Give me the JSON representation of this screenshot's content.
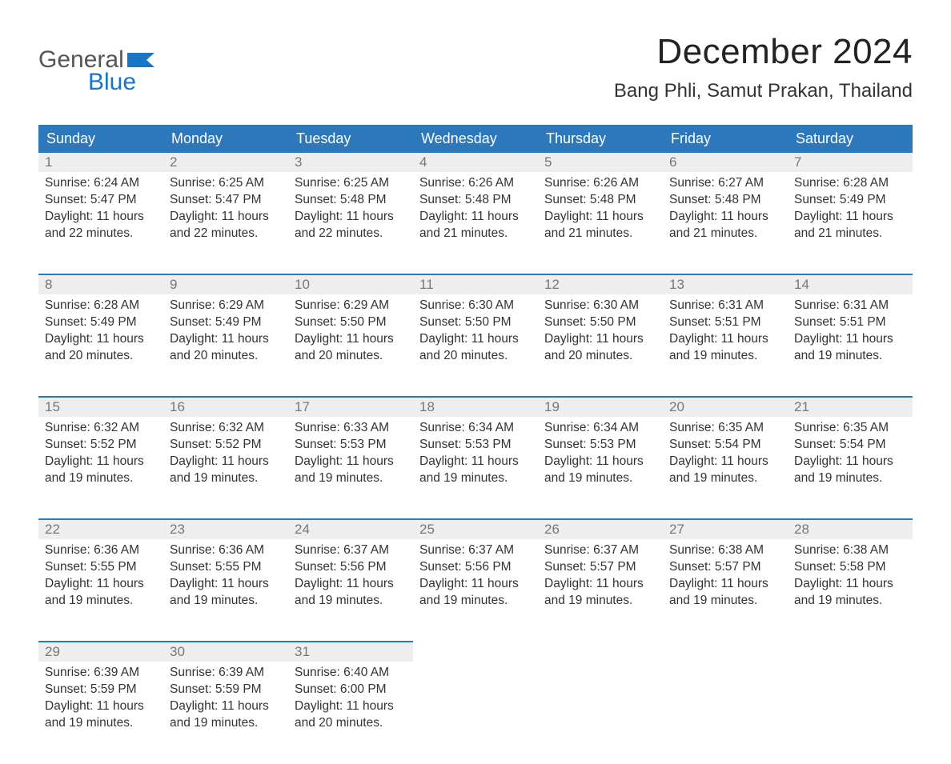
{
  "logo": {
    "word1": "General",
    "word2": "Blue",
    "word1_color": "#555555",
    "word2_color": "#1976c5",
    "flag_color": "#1976c5"
  },
  "title": "December 2024",
  "location": "Bang Phli, Samut Prakan, Thailand",
  "colors": {
    "header_bg": "#2d77bb",
    "header_text": "#ffffff",
    "daynum_bg": "#eeeeee",
    "daynum_text": "#777777",
    "row_border": "#2d77bb",
    "body_text": "#333333",
    "background": "#ffffff"
  },
  "fonts": {
    "title_size": 44,
    "location_size": 24,
    "header_size": 18,
    "daynum_size": 17,
    "cell_size": 15.5
  },
  "daysOfWeek": [
    "Sunday",
    "Monday",
    "Tuesday",
    "Wednesday",
    "Thursday",
    "Friday",
    "Saturday"
  ],
  "weeks": [
    [
      {
        "n": "1",
        "sunrise": "6:24 AM",
        "sunset": "5:47 PM",
        "dl1": "Daylight: 11 hours",
        "dl2": "and 22 minutes."
      },
      {
        "n": "2",
        "sunrise": "6:25 AM",
        "sunset": "5:47 PM",
        "dl1": "Daylight: 11 hours",
        "dl2": "and 22 minutes."
      },
      {
        "n": "3",
        "sunrise": "6:25 AM",
        "sunset": "5:48 PM",
        "dl1": "Daylight: 11 hours",
        "dl2": "and 22 minutes."
      },
      {
        "n": "4",
        "sunrise": "6:26 AM",
        "sunset": "5:48 PM",
        "dl1": "Daylight: 11 hours",
        "dl2": "and 21 minutes."
      },
      {
        "n": "5",
        "sunrise": "6:26 AM",
        "sunset": "5:48 PM",
        "dl1": "Daylight: 11 hours",
        "dl2": "and 21 minutes."
      },
      {
        "n": "6",
        "sunrise": "6:27 AM",
        "sunset": "5:48 PM",
        "dl1": "Daylight: 11 hours",
        "dl2": "and 21 minutes."
      },
      {
        "n": "7",
        "sunrise": "6:28 AM",
        "sunset": "5:49 PM",
        "dl1": "Daylight: 11 hours",
        "dl2": "and 21 minutes."
      }
    ],
    [
      {
        "n": "8",
        "sunrise": "6:28 AM",
        "sunset": "5:49 PM",
        "dl1": "Daylight: 11 hours",
        "dl2": "and 20 minutes."
      },
      {
        "n": "9",
        "sunrise": "6:29 AM",
        "sunset": "5:49 PM",
        "dl1": "Daylight: 11 hours",
        "dl2": "and 20 minutes."
      },
      {
        "n": "10",
        "sunrise": "6:29 AM",
        "sunset": "5:50 PM",
        "dl1": "Daylight: 11 hours",
        "dl2": "and 20 minutes."
      },
      {
        "n": "11",
        "sunrise": "6:30 AM",
        "sunset": "5:50 PM",
        "dl1": "Daylight: 11 hours",
        "dl2": "and 20 minutes."
      },
      {
        "n": "12",
        "sunrise": "6:30 AM",
        "sunset": "5:50 PM",
        "dl1": "Daylight: 11 hours",
        "dl2": "and 20 minutes."
      },
      {
        "n": "13",
        "sunrise": "6:31 AM",
        "sunset": "5:51 PM",
        "dl1": "Daylight: 11 hours",
        "dl2": "and 19 minutes."
      },
      {
        "n": "14",
        "sunrise": "6:31 AM",
        "sunset": "5:51 PM",
        "dl1": "Daylight: 11 hours",
        "dl2": "and 19 minutes."
      }
    ],
    [
      {
        "n": "15",
        "sunrise": "6:32 AM",
        "sunset": "5:52 PM",
        "dl1": "Daylight: 11 hours",
        "dl2": "and 19 minutes."
      },
      {
        "n": "16",
        "sunrise": "6:32 AM",
        "sunset": "5:52 PM",
        "dl1": "Daylight: 11 hours",
        "dl2": "and 19 minutes."
      },
      {
        "n": "17",
        "sunrise": "6:33 AM",
        "sunset": "5:53 PM",
        "dl1": "Daylight: 11 hours",
        "dl2": "and 19 minutes."
      },
      {
        "n": "18",
        "sunrise": "6:34 AM",
        "sunset": "5:53 PM",
        "dl1": "Daylight: 11 hours",
        "dl2": "and 19 minutes."
      },
      {
        "n": "19",
        "sunrise": "6:34 AM",
        "sunset": "5:53 PM",
        "dl1": "Daylight: 11 hours",
        "dl2": "and 19 minutes."
      },
      {
        "n": "20",
        "sunrise": "6:35 AM",
        "sunset": "5:54 PM",
        "dl1": "Daylight: 11 hours",
        "dl2": "and 19 minutes."
      },
      {
        "n": "21",
        "sunrise": "6:35 AM",
        "sunset": "5:54 PM",
        "dl1": "Daylight: 11 hours",
        "dl2": "and 19 minutes."
      }
    ],
    [
      {
        "n": "22",
        "sunrise": "6:36 AM",
        "sunset": "5:55 PM",
        "dl1": "Daylight: 11 hours",
        "dl2": "and 19 minutes."
      },
      {
        "n": "23",
        "sunrise": "6:36 AM",
        "sunset": "5:55 PM",
        "dl1": "Daylight: 11 hours",
        "dl2": "and 19 minutes."
      },
      {
        "n": "24",
        "sunrise": "6:37 AM",
        "sunset": "5:56 PM",
        "dl1": "Daylight: 11 hours",
        "dl2": "and 19 minutes."
      },
      {
        "n": "25",
        "sunrise": "6:37 AM",
        "sunset": "5:56 PM",
        "dl1": "Daylight: 11 hours",
        "dl2": "and 19 minutes."
      },
      {
        "n": "26",
        "sunrise": "6:37 AM",
        "sunset": "5:57 PM",
        "dl1": "Daylight: 11 hours",
        "dl2": "and 19 minutes."
      },
      {
        "n": "27",
        "sunrise": "6:38 AM",
        "sunset": "5:57 PM",
        "dl1": "Daylight: 11 hours",
        "dl2": "and 19 minutes."
      },
      {
        "n": "28",
        "sunrise": "6:38 AM",
        "sunset": "5:58 PM",
        "dl1": "Daylight: 11 hours",
        "dl2": "and 19 minutes."
      }
    ],
    [
      {
        "n": "29",
        "sunrise": "6:39 AM",
        "sunset": "5:59 PM",
        "dl1": "Daylight: 11 hours",
        "dl2": "and 19 minutes."
      },
      {
        "n": "30",
        "sunrise": "6:39 AM",
        "sunset": "5:59 PM",
        "dl1": "Daylight: 11 hours",
        "dl2": "and 19 minutes."
      },
      {
        "n": "31",
        "sunrise": "6:40 AM",
        "sunset": "6:00 PM",
        "dl1": "Daylight: 11 hours",
        "dl2": "and 20 minutes."
      },
      null,
      null,
      null,
      null
    ]
  ],
  "labels": {
    "sunrise": "Sunrise: ",
    "sunset": "Sunset: "
  }
}
